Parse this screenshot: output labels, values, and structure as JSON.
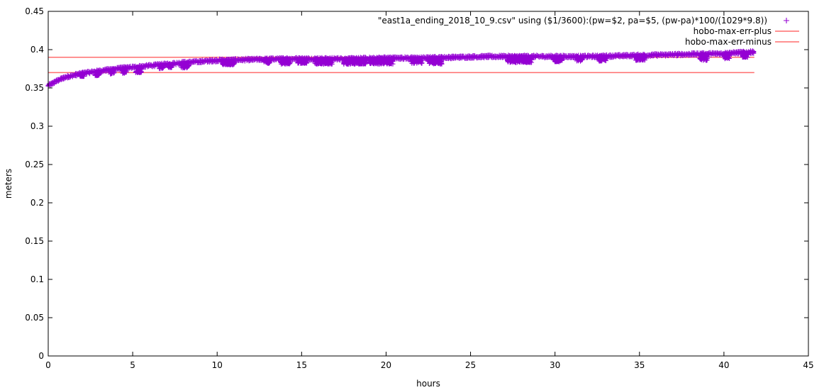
{
  "colors": {
    "data_series": "#9400d3",
    "error_lines": "#ff6e6e",
    "axes": "#000000"
  },
  "chart_data": {
    "type": "scatter",
    "xlabel": "hours",
    "ylabel": "meters",
    "xlim": [
      0,
      45
    ],
    "ylim": [
      0,
      0.45
    ],
    "x_ticks": [
      "0",
      "5",
      "10",
      "15",
      "20",
      "25",
      "30",
      "35",
      "40",
      "45"
    ],
    "y_ticks": [
      "0",
      "0.05",
      "0.1",
      "0.15",
      "0.2",
      "0.25",
      "0.3",
      "0.35",
      "0.4",
      "0.45"
    ],
    "grid": false,
    "legend_position": "top-right",
    "series": [
      {
        "name": "\"east1a_ending_2018_10_9.csv\" using ($1/3600):(pw=$2, pa=$5, (pw-pa)*100/(1029*9.8))",
        "style": "points",
        "marker": "+",
        "x_range": [
          0,
          41.8
        ],
        "trend": {
          "x": [
            0,
            0.5,
            1,
            2,
            3,
            4,
            5,
            6,
            7,
            8,
            10,
            12,
            14,
            16,
            18,
            20,
            22,
            24,
            26,
            28,
            30,
            32,
            34,
            36,
            38,
            40,
            41.8
          ],
          "y": [
            0.353,
            0.359,
            0.364,
            0.369,
            0.372,
            0.375,
            0.377,
            0.379,
            0.381,
            0.383,
            0.386,
            0.387,
            0.388,
            0.388,
            0.388,
            0.389,
            0.389,
            0.39,
            0.391,
            0.391,
            0.391,
            0.391,
            0.392,
            0.393,
            0.394,
            0.395,
            0.397
          ]
        },
        "dips": [
          {
            "x": [
              1.9,
              2.1
            ],
            "y_min": 0.365
          },
          {
            "x": [
              2.8,
              3.0
            ],
            "y_min": 0.366
          },
          {
            "x": [
              3.7,
              3.9
            ],
            "y_min": 0.368
          },
          {
            "x": [
              4.4,
              4.6
            ],
            "y_min": 0.369
          },
          {
            "x": [
              5.2,
              5.5
            ],
            "y_min": 0.37
          },
          {
            "x": [
              6.6,
              6.8
            ],
            "y_min": 0.375
          },
          {
            "x": [
              7.1,
              7.3
            ],
            "y_min": 0.376
          },
          {
            "x": [
              7.9,
              8.3
            ],
            "y_min": 0.376
          },
          {
            "x": [
              10.3,
              11.0
            ],
            "y_min": 0.38
          },
          {
            "x": [
              12.8,
              13.1
            ],
            "y_min": 0.382
          },
          {
            "x": [
              13.8,
              14.3
            ],
            "y_min": 0.381
          },
          {
            "x": [
              14.8,
              15.3
            ],
            "y_min": 0.382
          },
          {
            "x": [
              15.8,
              16.8
            ],
            "y_min": 0.381
          },
          {
            "x": [
              17.5,
              18.8
            ],
            "y_min": 0.381
          },
          {
            "x": [
              19.0,
              20.4
            ],
            "y_min": 0.381
          },
          {
            "x": [
              21.5,
              22.1
            ],
            "y_min": 0.382
          },
          {
            "x": [
              22.5,
              23.3
            ],
            "y_min": 0.381
          },
          {
            "x": [
              27.2,
              28.6
            ],
            "y_min": 0.383
          },
          {
            "x": [
              29.9,
              30.4
            ],
            "y_min": 0.384
          },
          {
            "x": [
              31.3,
              31.6
            ],
            "y_min": 0.385
          },
          {
            "x": [
              32.6,
              33.0
            ],
            "y_min": 0.385
          },
          {
            "x": [
              34.8,
              35.3
            ],
            "y_min": 0.386
          },
          {
            "x": [
              38.6,
              39.0
            ],
            "y_min": 0.386
          },
          {
            "x": [
              40.0,
              40.3
            ],
            "y_min": 0.388
          },
          {
            "x": [
              41.1,
              41.4
            ],
            "y_min": 0.39
          }
        ]
      },
      {
        "name": "hobo-max-err-plus",
        "style": "line",
        "x": [
          0,
          41.8
        ],
        "y": [
          0.39,
          0.39
        ]
      },
      {
        "name": "hobo-max-err-minus",
        "style": "line",
        "x": [
          0,
          41.8
        ],
        "y": [
          0.37,
          0.37
        ]
      }
    ]
  }
}
